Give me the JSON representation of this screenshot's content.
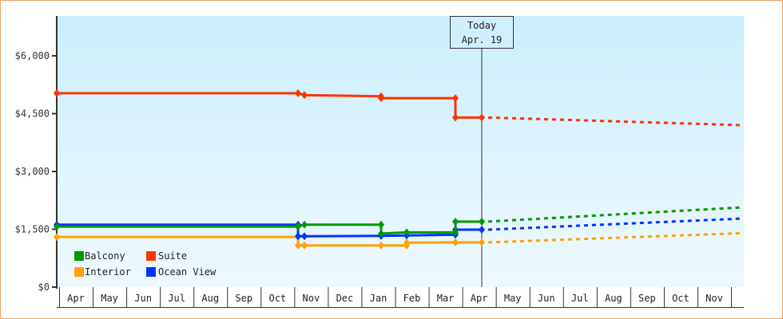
{
  "chart_data": {
    "type": "line",
    "title": "",
    "xlabel": "",
    "ylabel": "",
    "ylim": [
      0,
      6600
    ],
    "y_ticks": [
      "$0",
      "$1,500",
      "$3,000",
      "$4,500",
      "$6,000"
    ],
    "y_tick_values": [
      0,
      1500,
      3000,
      4500,
      6000
    ],
    "x_ticks": [
      "Apr",
      "May",
      "Jun",
      "Jul",
      "Aug",
      "Sep",
      "Oct",
      "Nov",
      "Dec",
      "Jan",
      "Feb",
      "Mar",
      "Apr",
      "May",
      "Jun",
      "Jul",
      "Aug",
      "Sep",
      "Oct",
      "Nov"
    ],
    "grid": false,
    "legend_position": "bottom-left inside",
    "today_marker": {
      "line1": "Today",
      "line2": "Apr. 19"
    },
    "series": [
      {
        "name": "Balcony",
        "color": "#009900",
        "points": [
          {
            "x": "Apr",
            "y": 1570
          },
          {
            "x": "Oct (late)",
            "y": 1570
          },
          {
            "x": "Nov",
            "y": 1620
          },
          {
            "x": "Jan",
            "y": 1620
          },
          {
            "x": "Jan",
            "y": 1390
          },
          {
            "x": "Feb",
            "y": 1420
          },
          {
            "x": "Mar",
            "y": 1420
          },
          {
            "x": "Mar",
            "y": 1700
          },
          {
            "x": "Apr (today)",
            "y": 1700
          }
        ],
        "forecast": [
          {
            "x": "Apr",
            "y": 1700
          },
          {
            "x": "Nov (end)",
            "y": 2070
          }
        ]
      },
      {
        "name": "Suite",
        "color": "#ff3300",
        "points": [
          {
            "x": "Apr",
            "y": 5030
          },
          {
            "x": "Oct (late)",
            "y": 5030
          },
          {
            "x": "Nov",
            "y": 4980
          },
          {
            "x": "Jan",
            "y": 4950
          },
          {
            "x": "Jan",
            "y": 4900
          },
          {
            "x": "Mar",
            "y": 4900
          },
          {
            "x": "Mar",
            "y": 4400
          },
          {
            "x": "Apr (today)",
            "y": 4400
          }
        ],
        "forecast": [
          {
            "x": "Apr",
            "y": 4400
          },
          {
            "x": "Nov (end)",
            "y": 4200
          }
        ]
      },
      {
        "name": "Interior",
        "color": "#ffa200",
        "points": [
          {
            "x": "Apr",
            "y": 1300
          },
          {
            "x": "Oct (late)",
            "y": 1300
          },
          {
            "x": "Nov",
            "y": 1080
          },
          {
            "x": "Jan",
            "y": 1080
          },
          {
            "x": "Feb",
            "y": 1080
          },
          {
            "x": "Feb",
            "y": 1150
          },
          {
            "x": "Mar",
            "y": 1160
          },
          {
            "x": "Apr (today)",
            "y": 1160
          }
        ],
        "forecast": [
          {
            "x": "Apr",
            "y": 1160
          },
          {
            "x": "Nov (end)",
            "y": 1400
          }
        ]
      },
      {
        "name": "Ocean View",
        "color": "#0033ff",
        "points": [
          {
            "x": "Apr",
            "y": 1620
          },
          {
            "x": "Oct (late)",
            "y": 1620
          },
          {
            "x": "Nov",
            "y": 1320
          },
          {
            "x": "Jan",
            "y": 1330
          },
          {
            "x": "Feb",
            "y": 1340
          },
          {
            "x": "Mar",
            "y": 1360
          },
          {
            "x": "Mar",
            "y": 1490
          },
          {
            "x": "Apr (today)",
            "y": 1490
          }
        ],
        "forecast": [
          {
            "x": "Apr",
            "y": 1490
          },
          {
            "x": "Nov (end)",
            "y": 1780
          }
        ]
      }
    ]
  }
}
